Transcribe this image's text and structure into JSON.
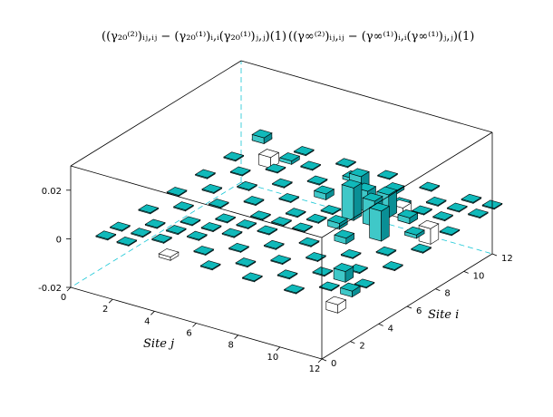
{
  "chart_data": {
    "type": "bar3d",
    "title_parts": [
      "((γ₂₀⁽²⁾)ᵢⱼ,ᵢⱼ − (γ₂₀⁽¹⁾)ᵢ,ᵢ(γ₂₀⁽¹⁾)ⱼ,ⱼ)(1)",
      "((γ∞⁽²⁾)ᵢⱼ,ᵢⱼ − (γ∞⁽¹⁾)ᵢ,ᵢ(γ∞⁽¹⁾)ⱼ,ⱼ)(1)"
    ],
    "xlabel": "Site j",
    "ylabel": "Site i",
    "x_ticks": [
      "0",
      "2",
      "4",
      "6",
      "8",
      "10",
      "12"
    ],
    "y_ticks": [
      "0",
      "2",
      "4",
      "6",
      "8",
      "10",
      "12"
    ],
    "z_ticks": [
      "-0.02",
      "0",
      "0.02"
    ],
    "xlim": [
      0,
      12
    ],
    "ylim": [
      0,
      12
    ],
    "zlim": [
      -0.02,
      0.03
    ],
    "bar_colors": {
      "top": "#10b9ba",
      "side_light": "#3fc8c8",
      "side_dark": "#0a8f95",
      "negative_top": "#ffffff",
      "edge": "#000000"
    },
    "values": [
      [
        0.0,
        0.0,
        0.0,
        -0.001,
        0.0,
        0.0,
        0.0,
        0.0,
        0.0,
        0.0,
        0.0,
        -0.003
      ],
      [
        0.0,
        0.0,
        0.0,
        0.0,
        0.0,
        0.0,
        0.0,
        0.0,
        0.0,
        0.0,
        0.0,
        0.0
      ],
      [
        0.0,
        0.0,
        0.0,
        0.0,
        0.0,
        0.0,
        0.0,
        0.0,
        0.0,
        0.0,
        0.0,
        0.0
      ],
      [
        0.0,
        0.0,
        0.0,
        0.0,
        0.0,
        0.0,
        0.0,
        0.0,
        0.0,
        0.0,
        0.0,
        0.0
      ],
      [
        0.0,
        0.0,
        0.0,
        0.0,
        0.0,
        0.0,
        0.0,
        0.0,
        0.0,
        0.0,
        0.0,
        0.0
      ],
      [
        0.0,
        0.0,
        0.0,
        0.0,
        0.0,
        0.0,
        0.0,
        0.0,
        0.002,
        0.003,
        0.0,
        0.0
      ],
      [
        0.0,
        0.0,
        0.0,
        0.0,
        0.0,
        0.0,
        0.0,
        0.002,
        0.01,
        0.012,
        0.001,
        0.0
      ],
      [
        0.0,
        0.0,
        0.0,
        0.0,
        0.0,
        0.0,
        0.0,
        0.013,
        0.01,
        0.004,
        0.001,
        0.0
      ],
      [
        0.0,
        0.0,
        0.0,
        0.0,
        0.0,
        0.002,
        0.005,
        0.008,
        0.009,
        0.001,
        0.0,
        0.0
      ],
      [
        0.0,
        0.0,
        0.0,
        0.0,
        0.0,
        0.004,
        0.008,
        0.003,
        0.001,
        0.0,
        0.0,
        0.0
      ],
      [
        0.0,
        0.0,
        0.0,
        0.0,
        0.0,
        0.001,
        0.002,
        0.001,
        0.0,
        0.0,
        0.0,
        0.0
      ],
      [
        0.0,
        0.0,
        0.0,
        0.0,
        0.0,
        0.0,
        0.0,
        0.0,
        0.0,
        0.0,
        0.0,
        0.0
      ]
    ],
    "extra_bars": [
      {
        "i": 12,
        "j": 1,
        "value": 0.002
      },
      {
        "i": 11,
        "j": 2,
        "value": -0.004
      },
      {
        "i": 11,
        "j": 3,
        "value": 0.001
      },
      {
        "i": 3,
        "j": 11,
        "value": 0.004
      },
      {
        "i": 2,
        "j": 12,
        "value": 0.002
      },
      {
        "i": 9,
        "j": 10,
        "value": 0.002
      },
      {
        "i": 9,
        "j": 11,
        "value": -0.006
      },
      {
        "i": 10,
        "j": 9,
        "value": -0.004
      }
    ]
  }
}
